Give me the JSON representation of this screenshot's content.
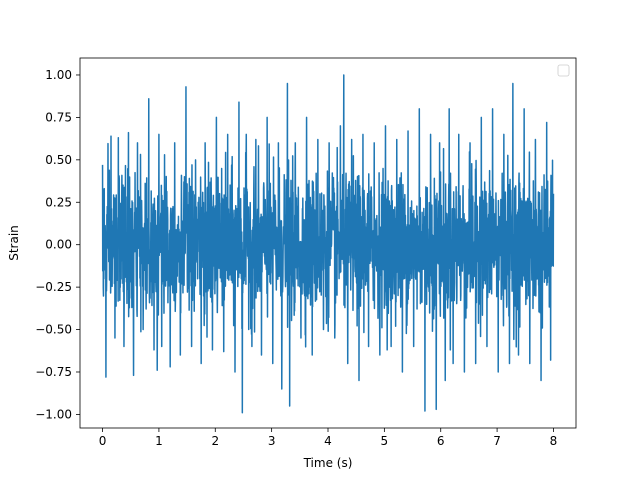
{
  "chart_data": {
    "type": "line",
    "title": "",
    "xlabel": "Time (s)",
    "ylabel": "Strain",
    "xlim": [
      -0.4,
      8.4
    ],
    "ylim": [
      -1.08,
      1.1
    ],
    "xticks": [
      0,
      1,
      2,
      3,
      4,
      5,
      6,
      7,
      8
    ],
    "xtick_labels": [
      "0",
      "1",
      "2",
      "3",
      "4",
      "5",
      "6",
      "7",
      "8"
    ],
    "yticks": [
      -1.0,
      -0.75,
      -0.5,
      -0.25,
      0.0,
      0.25,
      0.5,
      0.75,
      1.0
    ],
    "ytick_labels": [
      "−1.00",
      "−0.75",
      "−0.50",
      "−0.25",
      "0.00",
      "0.25",
      "0.50",
      "0.75",
      "1.00"
    ],
    "grid": false,
    "legend": {
      "location": "top-right",
      "entries": []
    },
    "series": [
      {
        "color": "#1f77b4",
        "x_start": 0,
        "x_end": 8,
        "peaks": [
          [
            0.0,
            0.47
          ],
          [
            0.06,
            -0.78
          ],
          [
            0.15,
            0.64
          ],
          [
            0.22,
            -0.55
          ],
          [
            0.28,
            0.63
          ],
          [
            0.38,
            -0.6
          ],
          [
            0.46,
            0.66
          ],
          [
            0.55,
            -0.77
          ],
          [
            0.62,
            0.6
          ],
          [
            0.72,
            -0.5
          ],
          [
            0.82,
            0.86
          ],
          [
            0.97,
            -0.74
          ],
          [
            1.0,
            0.65
          ],
          [
            1.05,
            -0.6
          ],
          [
            1.1,
            0.53
          ],
          [
            1.2,
            -0.72
          ],
          [
            1.28,
            0.6
          ],
          [
            1.38,
            -0.65
          ],
          [
            1.48,
            0.93
          ],
          [
            1.58,
            -0.6
          ],
          [
            1.65,
            0.5
          ],
          [
            1.75,
            -0.7
          ],
          [
            1.82,
            0.6
          ],
          [
            1.95,
            -0.62
          ],
          [
            2.02,
            0.75
          ],
          [
            2.15,
            -0.63
          ],
          [
            2.22,
            0.65
          ],
          [
            2.35,
            -0.75
          ],
          [
            2.42,
            0.84
          ],
          [
            2.48,
            -0.99
          ],
          [
            2.55,
            0.65
          ],
          [
            2.65,
            -0.6
          ],
          [
            2.72,
            0.62
          ],
          [
            2.82,
            -0.65
          ],
          [
            2.92,
            0.75
          ],
          [
            3.02,
            -0.7
          ],
          [
            3.12,
            0.6
          ],
          [
            3.18,
            -0.85
          ],
          [
            3.28,
            0.95
          ],
          [
            3.32,
            -0.95
          ],
          [
            3.42,
            0.6
          ],
          [
            3.52,
            -0.55
          ],
          [
            3.62,
            0.75
          ],
          [
            3.72,
            -0.65
          ],
          [
            3.82,
            0.62
          ],
          [
            3.92,
            -0.5
          ],
          [
            4.02,
            0.6
          ],
          [
            4.12,
            -0.55
          ],
          [
            4.22,
            0.7
          ],
          [
            4.28,
            1.0
          ],
          [
            4.35,
            -0.7
          ],
          [
            4.42,
            0.62
          ],
          [
            4.55,
            -0.8
          ],
          [
            4.62,
            0.65
          ],
          [
            4.72,
            -0.6
          ],
          [
            4.82,
            0.6
          ],
          [
            4.92,
            -0.65
          ],
          [
            5.02,
            0.7
          ],
          [
            5.12,
            -0.6
          ],
          [
            5.22,
            0.62
          ],
          [
            5.32,
            -0.75
          ],
          [
            5.42,
            0.67
          ],
          [
            5.52,
            -0.6
          ],
          [
            5.62,
            0.8
          ],
          [
            5.72,
            -0.98
          ],
          [
            5.82,
            0.65
          ],
          [
            5.92,
            -0.97
          ],
          [
            5.98,
            0.6
          ],
          [
            6.08,
            -0.8
          ],
          [
            6.15,
            0.8
          ],
          [
            6.22,
            -0.7
          ],
          [
            6.32,
            0.65
          ],
          [
            6.42,
            -0.75
          ],
          [
            6.52,
            0.6
          ],
          [
            6.62,
            -0.7
          ],
          [
            6.72,
            0.75
          ],
          [
            6.82,
            -0.6
          ],
          [
            6.92,
            0.8
          ],
          [
            7.02,
            -0.75
          ],
          [
            7.12,
            0.65
          ],
          [
            7.22,
            -0.7
          ],
          [
            7.28,
            0.95
          ],
          [
            7.38,
            -0.65
          ],
          [
            7.48,
            0.8
          ],
          [
            7.58,
            -0.7
          ],
          [
            7.68,
            0.62
          ],
          [
            7.78,
            -0.8
          ],
          [
            7.88,
            0.72
          ],
          [
            7.95,
            -0.68
          ],
          [
            8.0,
            0.3
          ]
        ]
      }
    ]
  }
}
